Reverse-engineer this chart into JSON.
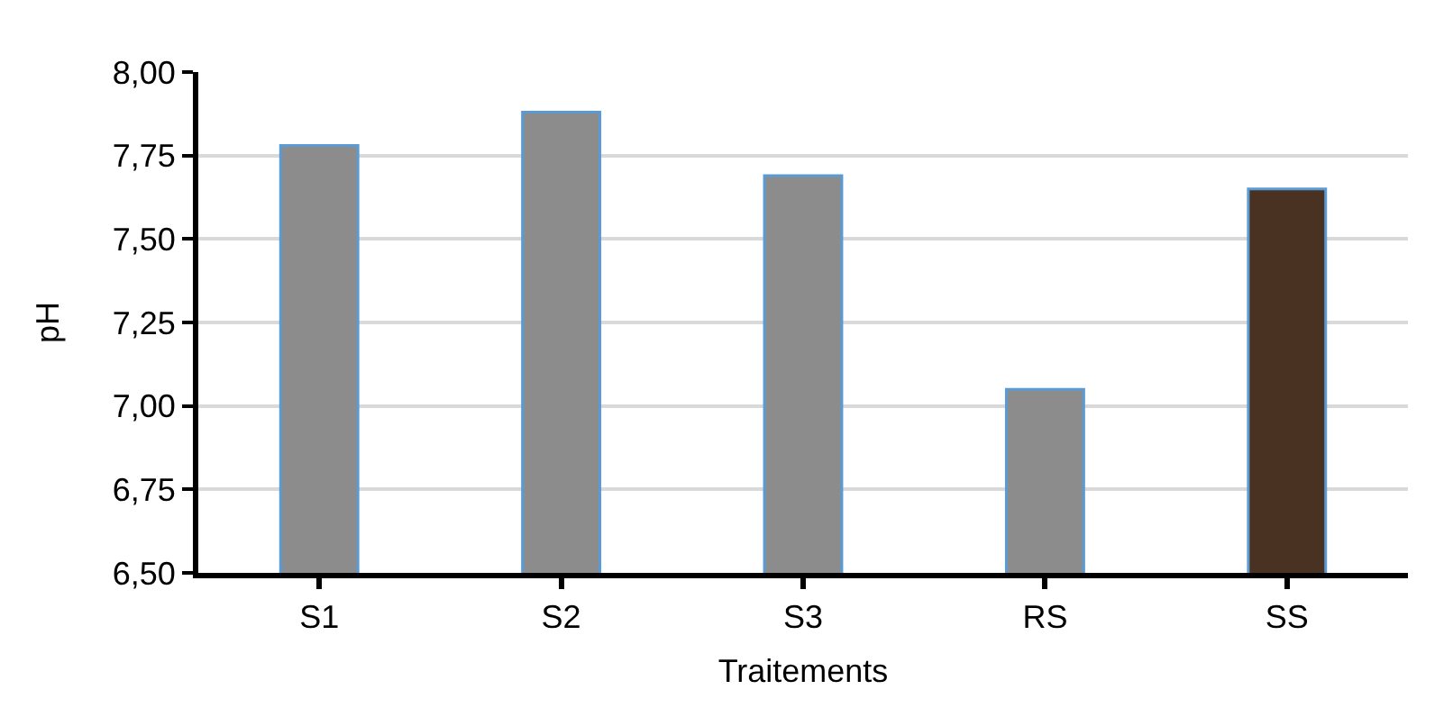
{
  "chart_data": {
    "type": "bar",
    "xlabel": "Traitements",
    "ylabel": "pH",
    "categories": [
      "S1",
      "S2",
      "S3",
      "RS",
      "SS"
    ],
    "values": [
      7.78,
      7.88,
      7.69,
      7.05,
      7.65
    ],
    "colors": [
      "#8c8c8c",
      "#8c8c8c",
      "#8c8c8c",
      "#8c8c8c",
      "#4a3222"
    ],
    "ylim": [
      6.5,
      8.0
    ],
    "yticks": [
      {
        "value": 6.5,
        "label": "6,50"
      },
      {
        "value": 6.75,
        "label": "6,75"
      },
      {
        "value": 7.0,
        "label": "7,00"
      },
      {
        "value": 7.25,
        "label": "7,25"
      },
      {
        "value": 7.5,
        "label": "7,50"
      },
      {
        "value": 7.75,
        "label": "7,75"
      },
      {
        "value": 8.0,
        "label": "8,00"
      }
    ],
    "grid": "y",
    "legend": false
  }
}
